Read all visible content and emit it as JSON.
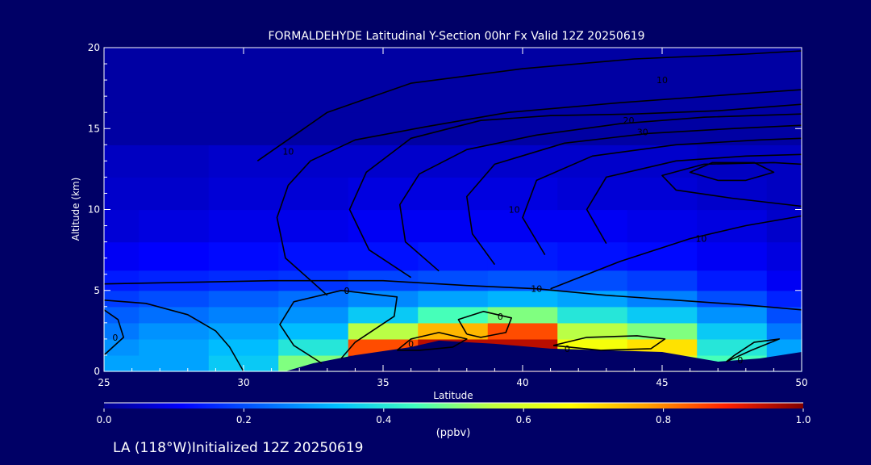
{
  "colors": {
    "background": "#000066",
    "frame": "#ffffff",
    "contour": "#000000",
    "colormap": [
      "#00008f",
      "#0000ff",
      "#0060ff",
      "#00c0ff",
      "#40ffbf",
      "#c0ff40",
      "#ffff00",
      "#ff9f00",
      "#ff2000",
      "#800000"
    ]
  },
  "chart_data": {
    "type": "heatmap",
    "title": "FORMALDEHYDE Latitudinal Y-Section 00hr  Fx Valid 12Z 20250619",
    "xlabel": "Latitude",
    "ylabel": "Altitude (km)",
    "xlim": [
      25,
      50
    ],
    "ylim": [
      0,
      20
    ],
    "x_ticks": [
      "25",
      "30",
      "35",
      "40",
      "45",
      "50"
    ],
    "y_ticks": [
      "0",
      "5",
      "10",
      "15",
      "20"
    ],
    "colorbar": {
      "label": "(ppbv)",
      "range": [
        0.0,
        1.0
      ],
      "ticks": [
        "0.0",
        "0.2",
        "0.4",
        "0.6",
        "0.8",
        "1.0"
      ]
    },
    "footer": "LA (118°W)Initialized 12Z 20250619",
    "grid_lat": [
      25,
      27.5,
      30,
      32.5,
      35,
      37.5,
      40,
      42.5,
      45,
      47.5,
      50
    ],
    "grid_alt": [
      0.5,
      1.5,
      2.5,
      3.5,
      4.5,
      5.5,
      7,
      9,
      11,
      13,
      15,
      17,
      19
    ],
    "values": [
      [
        0.3,
        0.3,
        0.35,
        0.5,
        0.95,
        0.95,
        0.9,
        0.75,
        0.6,
        0.45,
        0.3
      ],
      [
        0.28,
        0.3,
        0.33,
        0.4,
        0.85,
        0.95,
        0.95,
        0.65,
        0.7,
        0.4,
        0.3
      ],
      [
        0.25,
        0.28,
        0.3,
        0.33,
        0.55,
        0.75,
        0.85,
        0.55,
        0.5,
        0.35,
        0.25
      ],
      [
        0.22,
        0.24,
        0.26,
        0.28,
        0.35,
        0.45,
        0.5,
        0.4,
        0.35,
        0.28,
        0.2
      ],
      [
        0.18,
        0.2,
        0.22,
        0.24,
        0.27,
        0.3,
        0.32,
        0.3,
        0.26,
        0.2,
        0.15
      ],
      [
        0.14,
        0.15,
        0.16,
        0.17,
        0.19,
        0.2,
        0.21,
        0.2,
        0.18,
        0.14,
        0.1
      ],
      [
        0.1,
        0.11,
        0.12,
        0.13,
        0.13,
        0.14,
        0.14,
        0.13,
        0.12,
        0.1,
        0.08
      ],
      [
        0.07,
        0.08,
        0.09,
        0.09,
        0.1,
        0.1,
        0.1,
        0.1,
        0.09,
        0.08,
        0.06
      ],
      [
        0.06,
        0.06,
        0.07,
        0.07,
        0.08,
        0.08,
        0.08,
        0.07,
        0.07,
        0.06,
        0.05
      ],
      [
        0.05,
        0.05,
        0.06,
        0.06,
        0.06,
        0.06,
        0.06,
        0.06,
        0.06,
        0.05,
        0.05
      ],
      [
        0.02,
        0.02,
        0.02,
        0.02,
        0.02,
        0.02,
        0.02,
        0.02,
        0.02,
        0.02,
        0.02
      ],
      [
        0.02,
        0.02,
        0.02,
        0.02,
        0.02,
        0.02,
        0.02,
        0.02,
        0.02,
        0.02,
        0.02
      ],
      [
        0.02,
        0.02,
        0.02,
        0.02,
        0.02,
        0.02,
        0.02,
        0.02,
        0.02,
        0.02,
        0.02
      ]
    ],
    "terrain": [
      [
        25,
        0
      ],
      [
        31.5,
        0
      ],
      [
        32.5,
        0.5
      ],
      [
        34,
        1
      ],
      [
        36,
        1.5
      ],
      [
        37,
        1.9
      ],
      [
        39,
        1.7
      ],
      [
        41,
        1.4
      ],
      [
        43,
        1.3
      ],
      [
        45,
        1.2
      ],
      [
        47,
        0.6
      ],
      [
        48.5,
        0.8
      ],
      [
        50,
        1.2
      ]
    ],
    "contours": [
      {
        "label": "0",
        "label_at": [
          33.7,
          5.0
        ],
        "points": [
          [
            30.0,
            0.0
          ],
          [
            29.5,
            1.5
          ],
          [
            29.0,
            2.5
          ],
          [
            28.0,
            3.5
          ],
          [
            26.5,
            4.2
          ],
          [
            25.0,
            4.4
          ]
        ]
      },
      {
        "label": "0",
        "label_at": [
          25.4,
          2.1
        ],
        "points": [
          [
            25.0,
            1.0
          ],
          [
            25.7,
            2.1
          ],
          [
            25.5,
            3.2
          ],
          [
            25.0,
            3.8
          ]
        ]
      },
      {
        "label": "0",
        "label_at": [
          33.7,
          5.0
        ],
        "points": [
          [
            32.8,
            0.5
          ],
          [
            31.8,
            1.6
          ],
          [
            31.3,
            2.9
          ],
          [
            31.8,
            4.3
          ],
          [
            33.5,
            5.0
          ],
          [
            35.5,
            4.6
          ],
          [
            35.4,
            3.4
          ],
          [
            34.0,
            1.8
          ],
          [
            33.5,
            0.8
          ]
        ]
      },
      {
        "label": "0",
        "label_at": [
          39.2,
          3.4
        ],
        "points": [
          [
            38.0,
            2.3
          ],
          [
            37.7,
            3.2
          ],
          [
            38.6,
            3.7
          ],
          [
            39.6,
            3.3
          ],
          [
            39.4,
            2.4
          ],
          [
            38.5,
            2.1
          ],
          [
            38.0,
            2.3
          ]
        ]
      },
      {
        "label": "0",
        "label_at": [
          36.0,
          1.7
        ],
        "points": [
          [
            35.5,
            1.3
          ],
          [
            36.0,
            2.0
          ],
          [
            37.0,
            2.4
          ],
          [
            38.0,
            2.0
          ],
          [
            37.5,
            1.5
          ],
          [
            36.3,
            1.3
          ],
          [
            35.5,
            1.3
          ]
        ]
      },
      {
        "label": "0",
        "label_at": [
          41.6,
          1.4
        ],
        "points": [
          [
            41.1,
            1.6
          ],
          [
            42.3,
            2.1
          ],
          [
            44.1,
            2.2
          ],
          [
            45.1,
            2.0
          ],
          [
            44.6,
            1.4
          ],
          [
            42.8,
            1.3
          ],
          [
            41.1,
            1.6
          ]
        ]
      },
      {
        "label": "0",
        "label_at": [
          47.8,
          0.7
        ],
        "points": [
          [
            47.3,
            0.6
          ],
          [
            48.2,
            1.3
          ],
          [
            49.2,
            2.0
          ],
          [
            48.3,
            1.8
          ],
          [
            47.6,
            1.0
          ],
          [
            47.3,
            0.6
          ]
        ]
      },
      {
        "label": "10",
        "label_at": [
          40.5,
          5.1
        ],
        "points": [
          [
            25.0,
            5.4
          ],
          [
            28.0,
            5.5
          ],
          [
            31.0,
            5.6
          ],
          [
            35.0,
            5.6
          ],
          [
            38.0,
            5.3
          ],
          [
            40.5,
            5.1
          ],
          [
            43.0,
            4.7
          ],
          [
            45.5,
            4.4
          ],
          [
            48.0,
            4.1
          ],
          [
            50.0,
            3.8
          ]
        ]
      },
      {
        "label": "10",
        "label_at": [
          31.6,
          13.6
        ],
        "points": [
          [
            33.0,
            4.7
          ],
          [
            31.5,
            7.0
          ],
          [
            31.2,
            9.5
          ],
          [
            31.6,
            11.5
          ],
          [
            32.4,
            13.0
          ],
          [
            34.0,
            14.3
          ],
          [
            36.5,
            15.1
          ],
          [
            39.5,
            16.0
          ],
          [
            43.5,
            16.6
          ],
          [
            47.5,
            17.1
          ],
          [
            50.0,
            17.4
          ]
        ]
      },
      {
        "label": "10",
        "label_at": [
          45.0,
          18.0
        ],
        "points": [
          [
            30.5,
            13.0
          ],
          [
            33.0,
            16.0
          ],
          [
            36.0,
            17.8
          ],
          [
            40.0,
            18.7
          ],
          [
            44.0,
            19.3
          ],
          [
            48.0,
            19.6
          ],
          [
            50.0,
            19.8
          ]
        ]
      },
      {
        "label": "10",
        "label_at": [
          39.7,
          10.0
        ],
        "points": [
          [
            36.0,
            5.8
          ],
          [
            34.5,
            7.5
          ],
          [
            33.8,
            10.0
          ],
          [
            34.4,
            12.3
          ],
          [
            36.0,
            14.4
          ],
          [
            38.5,
            15.5
          ],
          [
            41.0,
            15.8
          ],
          [
            44.0,
            15.9
          ],
          [
            47.0,
            16.1
          ],
          [
            50.0,
            16.5
          ]
        ]
      },
      {
        "label": "10",
        "label_at": [
          46.4,
          8.2
        ],
        "points": [
          [
            41.0,
            5.1
          ],
          [
            43.5,
            6.8
          ],
          [
            46.0,
            8.2
          ],
          [
            48.0,
            9.0
          ],
          [
            50.0,
            9.6
          ]
        ]
      },
      {
        "label": "20",
        "label_at": [
          43.8,
          15.5
        ],
        "points": [
          [
            37.0,
            6.2
          ],
          [
            35.8,
            8.0
          ],
          [
            35.6,
            10.3
          ],
          [
            36.3,
            12.2
          ],
          [
            38.0,
            13.7
          ],
          [
            40.5,
            14.6
          ],
          [
            43.5,
            15.3
          ],
          [
            46.5,
            15.7
          ],
          [
            50.0,
            15.9
          ]
        ]
      },
      {
        "label": "30",
        "label_at": [
          44.3,
          14.8
        ],
        "points": [
          [
            39.0,
            6.6
          ],
          [
            38.2,
            8.5
          ],
          [
            38.0,
            10.8
          ],
          [
            39.0,
            12.8
          ],
          [
            41.5,
            14.1
          ],
          [
            44.5,
            14.7
          ],
          [
            47.5,
            15.0
          ],
          [
            50.0,
            15.2
          ]
        ]
      },
      {
        "label": "",
        "label_at": null,
        "points": [
          [
            40.8,
            7.2
          ],
          [
            40.0,
            9.5
          ],
          [
            40.5,
            11.8
          ],
          [
            42.5,
            13.3
          ],
          [
            45.5,
            14.0
          ],
          [
            48.5,
            14.3
          ],
          [
            50.0,
            14.4
          ]
        ]
      },
      {
        "label": "",
        "label_at": null,
        "points": [
          [
            43.0,
            7.9
          ],
          [
            42.3,
            10.0
          ],
          [
            43.0,
            12.0
          ],
          [
            45.5,
            13.0
          ],
          [
            48.0,
            13.3
          ],
          [
            50.0,
            13.4
          ]
        ]
      },
      {
        "label": "",
        "label_at": null,
        "points": [
          [
            50.0,
            10.2
          ],
          [
            47.5,
            10.7
          ],
          [
            45.5,
            11.2
          ],
          [
            45.0,
            12.1
          ],
          [
            46.5,
            12.8
          ],
          [
            49.0,
            12.9
          ],
          [
            50.0,
            12.8
          ]
        ]
      },
      {
        "label": "",
        "label_at": null,
        "points": [
          [
            47.0,
            11.8
          ],
          [
            46.0,
            12.3
          ],
          [
            46.8,
            12.9
          ],
          [
            48.3,
            12.9
          ],
          [
            49.0,
            12.3
          ],
          [
            48.0,
            11.8
          ],
          [
            47.0,
            11.8
          ]
        ]
      }
    ]
  }
}
